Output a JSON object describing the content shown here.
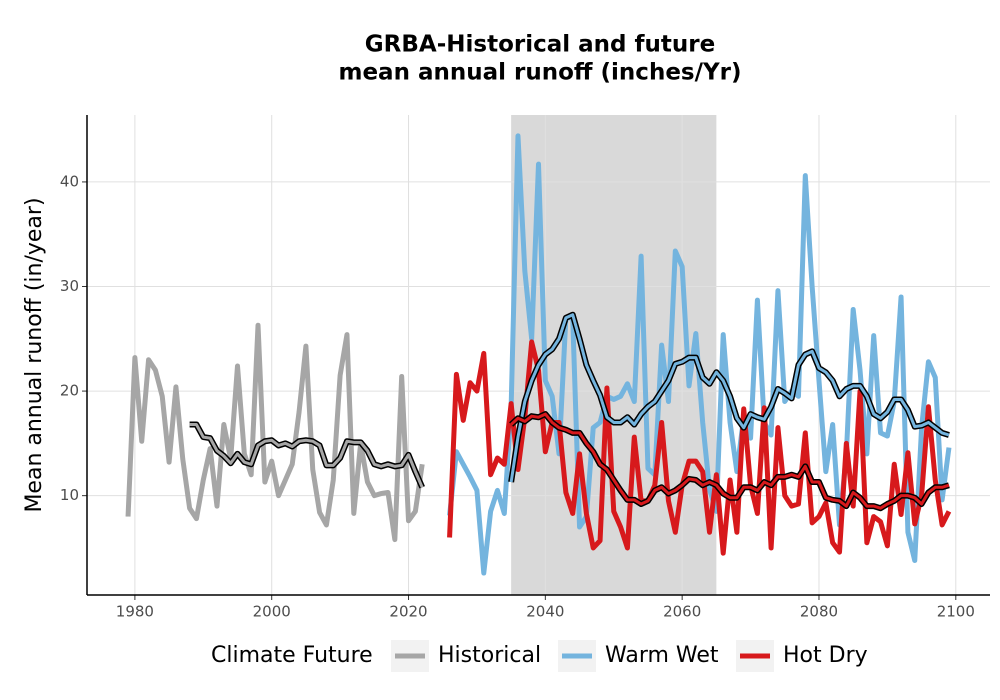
{
  "chart_data": {
    "type": "line",
    "title": [
      "GRBA-Historical and future",
      "mean annual runoff (inches/Yr)"
    ],
    "y_label": "Mean annual runoff (in/year)",
    "legend_title": "Climate Future",
    "legend_position": "bottom",
    "grid": true,
    "xlim": [
      1973,
      2105
    ],
    "xticks": [
      1980,
      2000,
      2020,
      2040,
      2060,
      2080,
      2100
    ],
    "ylim": [
      0.5,
      46.4
    ],
    "yticks": [
      10,
      20,
      30,
      40
    ],
    "shaded_range": [
      2035,
      2065
    ],
    "shade_color": "#d9d9d9",
    "series": [
      {
        "name": "Historical",
        "color": "#a6a6a6",
        "x": [
          1979,
          1980,
          1981,
          1982,
          1983,
          1984,
          1985,
          1986,
          1987,
          1988,
          1989,
          1990,
          1991,
          1992,
          1993,
          1994,
          1995,
          1996,
          1997,
          1998,
          1999,
          2000,
          2001,
          2002,
          2003,
          2004,
          2005,
          2006,
          2007,
          2008,
          2009,
          2010,
          2011,
          2012,
          2013,
          2014,
          2015,
          2016,
          2017,
          2018,
          2019,
          2020,
          2021,
          2022
        ],
        "values": [
          8,
          23.2,
          15.2,
          23,
          22,
          19.5,
          13.2,
          20.4,
          13.5,
          8.8,
          7.8,
          11.5,
          14.5,
          9,
          16.8,
          13.5,
          22.4,
          14,
          12,
          26.3,
          11.3,
          13.3,
          10,
          11.5,
          13,
          18,
          24.3,
          12.5,
          8.4,
          7.2,
          11.5,
          21.5,
          25.4,
          8.3,
          15,
          11.3,
          10,
          10.2,
          10.3,
          5.8,
          21.4,
          7.6,
          8.5,
          13
        ],
        "smooth": {
          "x": [
            1988,
            1989,
            1990,
            1991,
            1992,
            1993,
            1994,
            1995,
            1996,
            1997,
            1998,
            1999,
            2000,
            2001,
            2002,
            2003,
            2004,
            2005,
            2006,
            2007,
            2008,
            2009,
            2010,
            2011,
            2012,
            2013,
            2014,
            2015,
            2016,
            2017,
            2018,
            2019,
            2020,
            2021,
            2022
          ],
          "values": [
            16.8,
            16.8,
            15.6,
            15.5,
            14.3,
            13.8,
            13.1,
            14,
            13.2,
            13,
            14.8,
            15.2,
            15.3,
            14.8,
            15,
            14.7,
            15.2,
            15.3,
            15.2,
            14.8,
            12.9,
            12.9,
            13.6,
            15.2,
            15.1,
            15.1,
            14.3,
            13,
            12.8,
            13,
            12.8,
            12.9,
            13.9,
            12.3,
            10.8
          ]
        }
      },
      {
        "name": "Warm Wet",
        "color": "#74b4de",
        "x": [
          2026,
          2027,
          2028,
          2029,
          2030,
          2031,
          2032,
          2033,
          2034,
          2035,
          2036,
          2037,
          2038,
          2039,
          2040,
          2041,
          2042,
          2043,
          2044,
          2045,
          2046,
          2047,
          2048,
          2049,
          2050,
          2051,
          2052,
          2053,
          2054,
          2055,
          2056,
          2057,
          2058,
          2059,
          2060,
          2061,
          2062,
          2063,
          2064,
          2065,
          2066,
          2067,
          2068,
          2069,
          2070,
          2071,
          2072,
          2073,
          2074,
          2075,
          2076,
          2077,
          2078,
          2079,
          2080,
          2081,
          2082,
          2083,
          2084,
          2085,
          2086,
          2087,
          2088,
          2089,
          2090,
          2091,
          2092,
          2093,
          2094,
          2095,
          2096,
          2097,
          2098,
          2099
        ],
        "values": [
          8.1,
          14.2,
          13,
          11.8,
          10.5,
          2.6,
          8.5,
          10.5,
          8.3,
          18.5,
          44.4,
          31.5,
          25,
          41.7,
          21,
          19.5,
          14,
          27,
          27,
          7,
          8,
          16.5,
          17,
          19.5,
          19.2,
          19.5,
          20.7,
          19,
          32.9,
          12.6,
          12,
          24.4,
          19,
          33.4,
          31.9,
          20.5,
          25.5,
          17,
          10.6,
          8.5,
          25.4,
          17,
          12.3,
          17.5,
          15.5,
          28.7,
          17,
          15.8,
          29.6,
          19,
          20,
          19.5,
          40.6,
          30,
          21,
          12.3,
          16.8,
          7.2,
          14,
          27.8,
          22,
          14,
          25.3,
          16,
          15.7,
          19,
          29,
          6.5,
          3.8,
          16.5,
          22.8,
          21.3,
          9.6,
          14.6
        ],
        "smooth": {
          "x": [
            2035,
            2036,
            2037,
            2038,
            2039,
            2040,
            2041,
            2042,
            2043,
            2044,
            2045,
            2046,
            2047,
            2048,
            2049,
            2050,
            2051,
            2052,
            2053,
            2054,
            2055,
            2056,
            2057,
            2058,
            2059,
            2060,
            2061,
            2062,
            2063,
            2064,
            2065,
            2066,
            2067,
            2068,
            2069,
            2070,
            2071,
            2072,
            2073,
            2074,
            2075,
            2076,
            2077,
            2078,
            2079,
            2080,
            2081,
            2082,
            2083,
            2084,
            2085,
            2086,
            2087,
            2088,
            2089,
            2090,
            2091,
            2092,
            2093,
            2094,
            2095,
            2096,
            2097,
            2098,
            2099
          ],
          "values": [
            11.3,
            15.6,
            19,
            21,
            22.5,
            23.5,
            24,
            25,
            27,
            27.3,
            25,
            22.5,
            21,
            19.6,
            17.5,
            17,
            17,
            17.5,
            16.8,
            17.8,
            18.5,
            19,
            20,
            21,
            22.6,
            22.8,
            23.2,
            23.2,
            21.3,
            20.7,
            21.8,
            21,
            19.5,
            17.4,
            16.5,
            17.8,
            17.5,
            17.3,
            18.5,
            20.2,
            19.8,
            19.3,
            22.5,
            23.5,
            23.8,
            22.2,
            21.8,
            21,
            19.5,
            20.2,
            20.5,
            20.5,
            19.5,
            17.8,
            17.4,
            18,
            19.2,
            19.2,
            18.2,
            16.6,
            16.7,
            17,
            16.5,
            16,
            15.8
          ]
        }
      },
      {
        "name": "Hot Dry",
        "color": "#d7191c",
        "x": [
          2026,
          2027,
          2028,
          2029,
          2030,
          2031,
          2032,
          2033,
          2034,
          2035,
          2036,
          2037,
          2038,
          2039,
          2040,
          2041,
          2042,
          2043,
          2044,
          2045,
          2046,
          2047,
          2048,
          2049,
          2050,
          2051,
          2052,
          2053,
          2054,
          2055,
          2056,
          2057,
          2058,
          2059,
          2060,
          2061,
          2062,
          2063,
          2064,
          2065,
          2066,
          2067,
          2068,
          2069,
          2070,
          2071,
          2072,
          2073,
          2074,
          2075,
          2076,
          2077,
          2078,
          2079,
          2080,
          2081,
          2082,
          2083,
          2084,
          2085,
          2086,
          2087,
          2088,
          2089,
          2090,
          2091,
          2092,
          2093,
          2094,
          2095,
          2096,
          2097,
          2098,
          2099
        ],
        "values": [
          6,
          21.6,
          17.2,
          20.8,
          20,
          23.6,
          12,
          13.6,
          13,
          18.8,
          12.5,
          17.5,
          24.7,
          22,
          14.2,
          17,
          17,
          10.3,
          8.3,
          14,
          8.3,
          5,
          5.7,
          20.3,
          8.5,
          7,
          5,
          15.6,
          9.5,
          9.5,
          11,
          17,
          9.5,
          6.5,
          11,
          13.3,
          13.3,
          12.3,
          6.5,
          12,
          4.5,
          11.5,
          6.5,
          18.3,
          11,
          8.3,
          18.4,
          5,
          16.5,
          10,
          9,
          9.2,
          16,
          7.4,
          8,
          9.3,
          5.5,
          4.6,
          15,
          9,
          20,
          5.5,
          8,
          7.5,
          5.2,
          13,
          8.2,
          14.1,
          7.3,
          10,
          18.5,
          11.5,
          7.2,
          8.5
        ],
        "smooth": {
          "x": [
            2035,
            2036,
            2037,
            2038,
            2039,
            2040,
            2041,
            2042,
            2043,
            2044,
            2045,
            2046,
            2047,
            2048,
            2049,
            2050,
            2051,
            2052,
            2053,
            2054,
            2055,
            2056,
            2057,
            2058,
            2059,
            2060,
            2061,
            2062,
            2063,
            2064,
            2065,
            2066,
            2067,
            2068,
            2069,
            2070,
            2071,
            2072,
            2073,
            2074,
            2075,
            2076,
            2077,
            2078,
            2079,
            2080,
            2081,
            2082,
            2083,
            2084,
            2085,
            2086,
            2087,
            2088,
            2089,
            2090,
            2091,
            2092,
            2093,
            2094,
            2095,
            2096,
            2097,
            2098,
            2099
          ],
          "values": [
            16.8,
            17.4,
            17.1,
            17.6,
            17.5,
            17.8,
            17,
            16.5,
            16.3,
            16,
            16,
            15,
            14.2,
            13,
            12.5,
            11.5,
            10.5,
            9.6,
            9.6,
            9.2,
            9.5,
            10.5,
            10.8,
            10.2,
            10.5,
            11,
            11.6,
            11.5,
            11,
            11.3,
            11,
            10.2,
            9.8,
            9.8,
            10.8,
            10.8,
            10.5,
            11.3,
            11,
            11.8,
            11.8,
            12,
            11.8,
            12.8,
            11.3,
            11.3,
            9.8,
            9.6,
            9.5,
            9,
            10.3,
            9.8,
            9,
            9,
            8.8,
            9.2,
            9.5,
            10,
            10,
            9.8,
            9.2,
            10.3,
            10.8,
            10.8,
            11
          ]
        }
      }
    ]
  }
}
